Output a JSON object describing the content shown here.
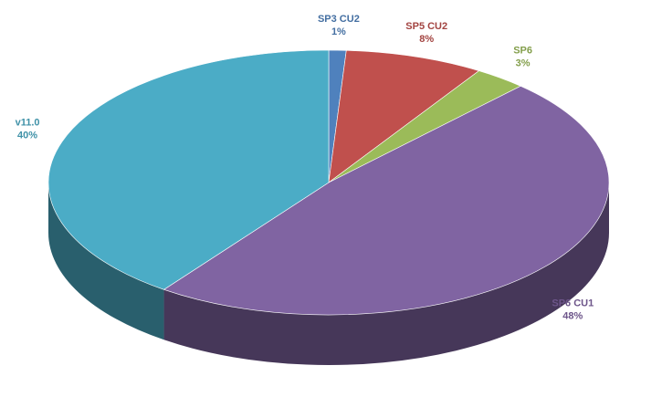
{
  "chart_data": {
    "type": "pie3d",
    "categories": [
      "SP3 CU2",
      "SP5 CU2",
      "SP6",
      "SP6 CU1",
      "v11.0"
    ],
    "values": [
      1,
      8,
      3,
      48,
      40
    ],
    "value_labels": [
      "1%",
      "8%",
      "3%",
      "48%",
      "40%"
    ],
    "colors": [
      "#4f81bd",
      "#c0504d",
      "#9bbb59",
      "#8064a2",
      "#4bacc6"
    ],
    "label_colors": [
      "#4f81bd",
      "#c0504d",
      "#9bbb59",
      "#8064a2",
      "#4bacc6"
    ]
  }
}
